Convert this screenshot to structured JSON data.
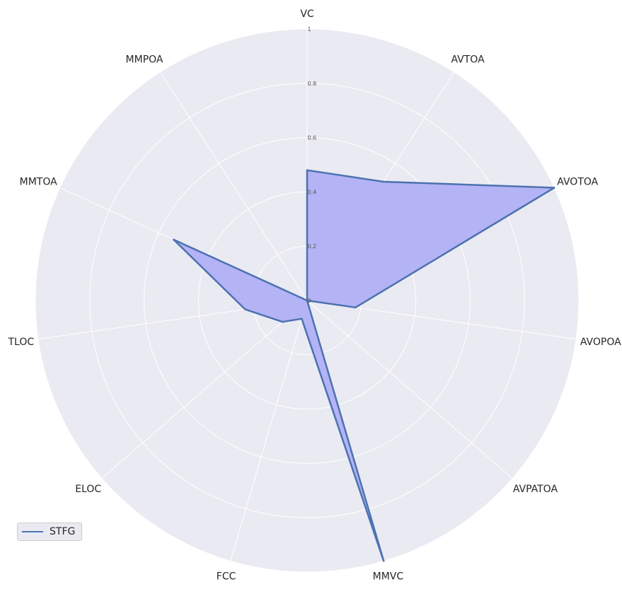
{
  "chart_data": {
    "type": "radar",
    "categories": [
      "VC",
      "AVTOA",
      "AVOTOA",
      "AVOPOA",
      "AVPATOA",
      "MMVC",
      "FCC",
      "ELOC",
      "TLOC",
      "MMTOA",
      "MMPOA"
    ],
    "series": [
      {
        "name": "STFG",
        "values": [
          0.48,
          0.52,
          1.0,
          0.18,
          0.0,
          1.0,
          0.07,
          0.12,
          0.23,
          0.54,
          0.0
        ]
      }
    ],
    "rticks": [
      "0",
      "0.2",
      "0.4",
      "0.6",
      "0.8",
      "1"
    ],
    "rlim": [
      0,
      1
    ],
    "grid": true,
    "legend_position": "lower-left"
  },
  "colors": {
    "background": "#eaeaf2",
    "grid": "#ffffff",
    "series_line": "#4c72b0",
    "series_fill": "#b0b0f5"
  }
}
